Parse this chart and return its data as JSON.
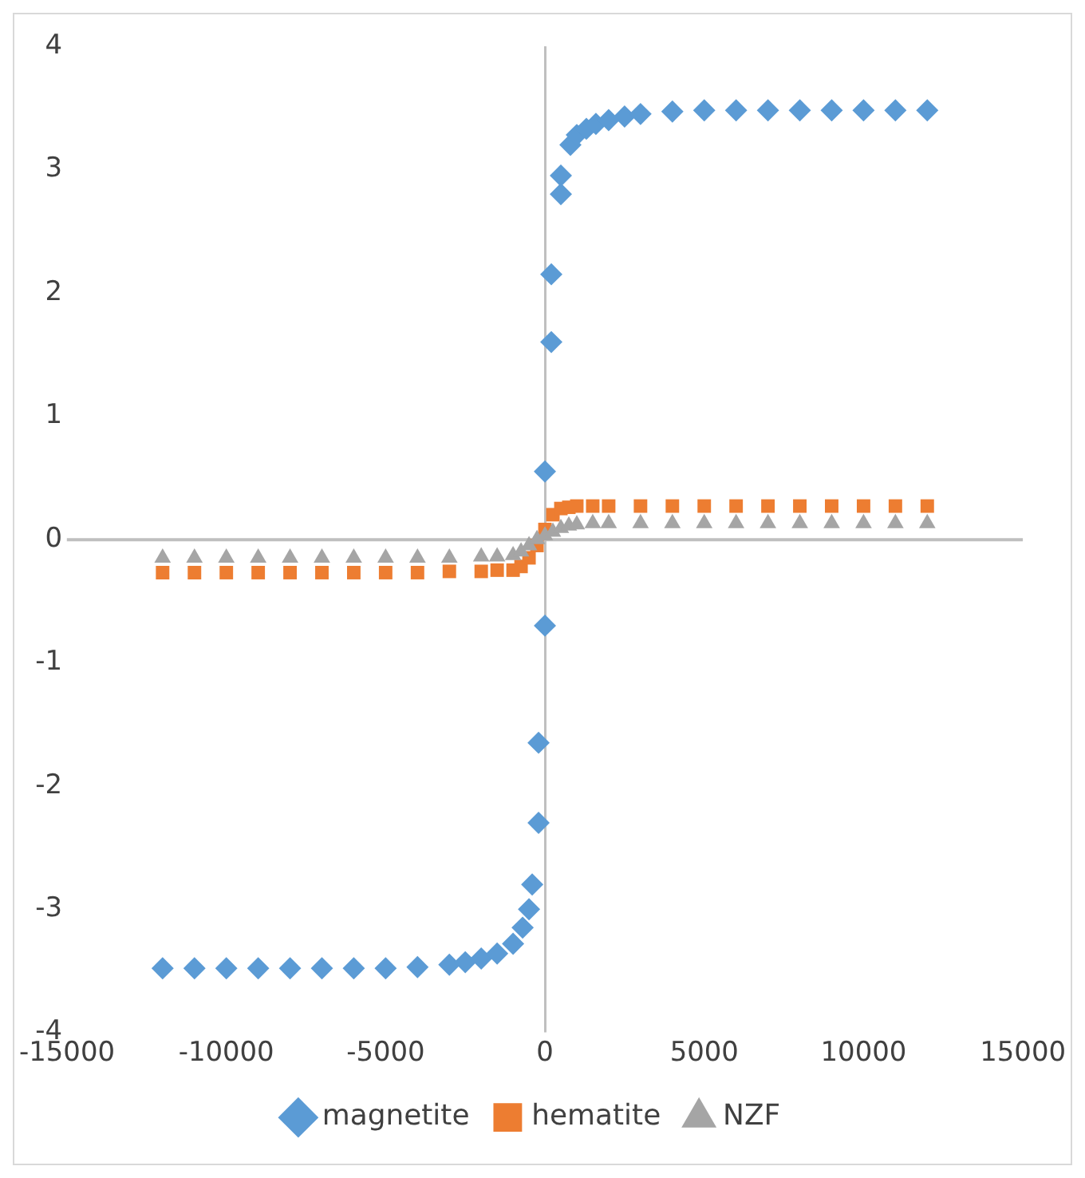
{
  "chart_data": {
    "type": "scatter",
    "xlim": [
      -15000,
      15000
    ],
    "xticks": [
      -15000,
      -10000,
      -5000,
      0,
      5000,
      10000,
      15000
    ],
    "ylim": [
      -4,
      4
    ],
    "yticks": [
      -4,
      -3,
      -2,
      -1,
      0,
      1,
      2,
      3,
      4
    ],
    "grid": false,
    "legend": "bottom",
    "series": [
      {
        "name": "magnetite",
        "color": "#5b9bd5",
        "marker": "diamond",
        "x": [
          -12000,
          -11000,
          -10000,
          -9000,
          -8000,
          -7000,
          -6000,
          -5000,
          -4000,
          -3000,
          -2500,
          -2000,
          -1500,
          -1000,
          -700,
          -500,
          -400,
          -200,
          -200,
          0,
          0,
          200,
          200,
          500,
          500,
          800,
          1000,
          1300,
          1600,
          2000,
          2500,
          3000,
          4000,
          5000,
          6000,
          7000,
          8000,
          9000,
          10000,
          11000,
          12000
        ],
        "values": [
          -3.48,
          -3.48,
          -3.48,
          -3.48,
          -3.48,
          -3.48,
          -3.48,
          -3.48,
          -3.47,
          -3.45,
          -3.43,
          -3.4,
          -3.36,
          -3.28,
          -3.15,
          -3.0,
          -2.8,
          -2.3,
          -1.65,
          -0.7,
          0.55,
          1.6,
          2.15,
          2.8,
          2.95,
          3.2,
          3.28,
          3.33,
          3.37,
          3.4,
          3.43,
          3.45,
          3.47,
          3.48,
          3.48,
          3.48,
          3.48,
          3.48,
          3.48,
          3.48,
          3.48
        ]
      },
      {
        "name": "hematite",
        "color": "#ed7d31",
        "marker": "square",
        "x": [
          -12000,
          -11000,
          -10000,
          -9000,
          -8000,
          -7000,
          -6000,
          -5000,
          -4000,
          -3000,
          -2000,
          -1500,
          -1000,
          -750,
          -500,
          -250,
          0,
          250,
          500,
          750,
          1000,
          1500,
          2000,
          3000,
          4000,
          5000,
          6000,
          7000,
          8000,
          9000,
          10000,
          11000,
          12000
        ],
        "values": [
          -0.27,
          -0.27,
          -0.27,
          -0.27,
          -0.27,
          -0.27,
          -0.27,
          -0.27,
          -0.27,
          -0.26,
          -0.26,
          -0.25,
          -0.25,
          -0.22,
          -0.15,
          -0.05,
          0.08,
          0.2,
          0.25,
          0.26,
          0.27,
          0.27,
          0.27,
          0.27,
          0.27,
          0.27,
          0.27,
          0.27,
          0.27,
          0.27,
          0.27,
          0.27,
          0.27
        ]
      },
      {
        "name": "NZF",
        "color": "#a5a5a5",
        "marker": "triangle",
        "x": [
          -12000,
          -11000,
          -10000,
          -9000,
          -8000,
          -7000,
          -6000,
          -5000,
          -4000,
          -3000,
          -2000,
          -1500,
          -1000,
          -750,
          -500,
          -250,
          0,
          250,
          500,
          750,
          1000,
          1500,
          2000,
          3000,
          4000,
          5000,
          6000,
          7000,
          8000,
          9000,
          10000,
          11000,
          12000
        ],
        "values": [
          -0.15,
          -0.15,
          -0.15,
          -0.15,
          -0.15,
          -0.15,
          -0.15,
          -0.15,
          -0.15,
          -0.15,
          -0.14,
          -0.14,
          -0.13,
          -0.1,
          -0.05,
          0,
          0.03,
          0.06,
          0.09,
          0.11,
          0.12,
          0.13,
          0.13,
          0.13,
          0.13,
          0.13,
          0.13,
          0.13,
          0.13,
          0.13,
          0.13,
          0.13,
          0.13
        ]
      }
    ]
  }
}
